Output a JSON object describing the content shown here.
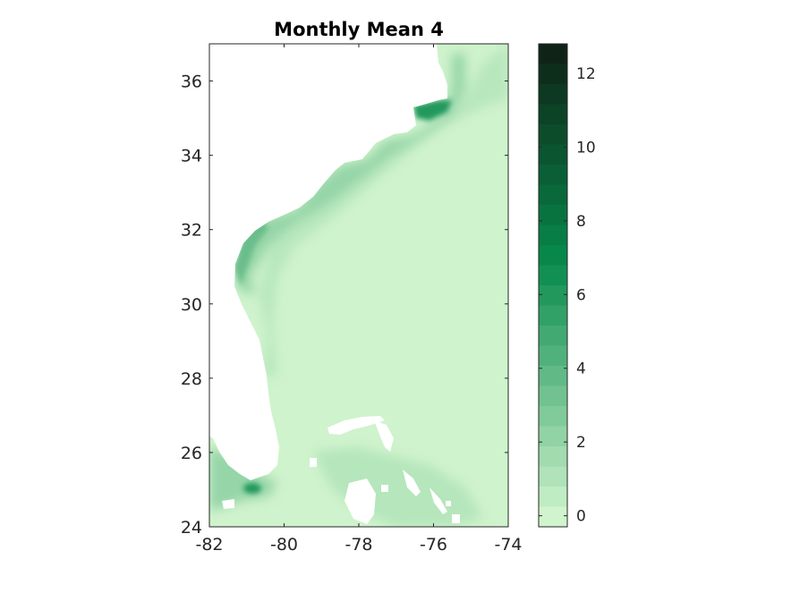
{
  "chart_data": {
    "type": "heatmap",
    "title": "Monthly Mean 4",
    "xlabel": "",
    "ylabel": "",
    "xlim": [
      -82,
      -74
    ],
    "ylim": [
      24,
      37
    ],
    "x_ticks": [
      -82,
      -80,
      -78,
      -76,
      -74
    ],
    "x_tick_labels": [
      "-82",
      "-80",
      "-78",
      "-76",
      "-74"
    ],
    "y_ticks": [
      24,
      26,
      28,
      30,
      32,
      34,
      36
    ],
    "y_tick_labels": [
      "24",
      "26",
      "28",
      "30",
      "32",
      "34",
      "36"
    ],
    "grid": false,
    "colorbar": {
      "limits": [
        -0.3,
        12.8
      ],
      "levels": 24,
      "ticks": [
        0,
        2,
        4,
        6,
        8,
        10,
        12
      ],
      "tick_labels": [
        "0",
        "2",
        "4",
        "6",
        "8",
        "10",
        "12"
      ],
      "color_low": "#d8f8d2",
      "color_mid": "#078a4c",
      "color_high": "#0f1f14"
    },
    "background_value": 0,
    "field_description_values": {
      "open_ocean": 0,
      "shelf_near_coast": 2,
      "pamlico_sound": 6,
      "florida_bay_hotspot": 6
    },
    "land_mask_color": "#ffffff"
  }
}
